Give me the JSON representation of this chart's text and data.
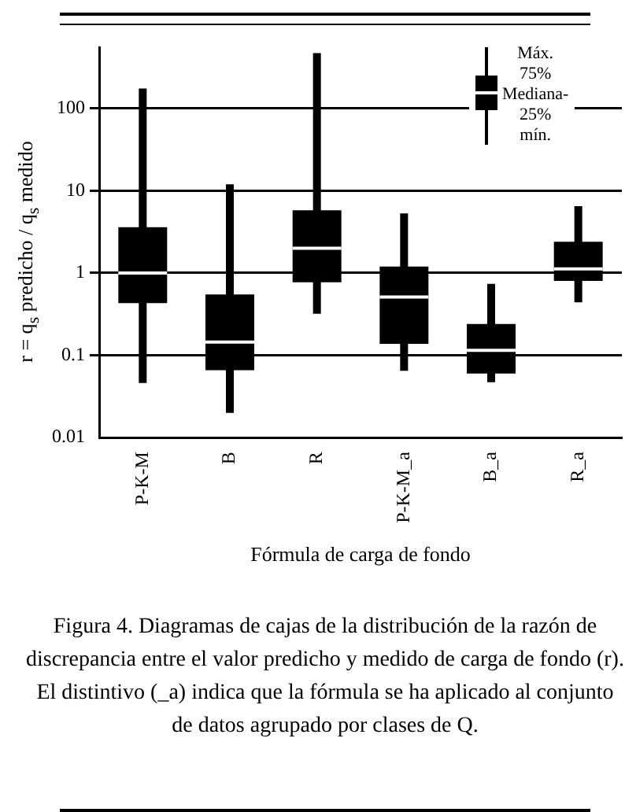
{
  "chart_data": {
    "type": "box",
    "ylabel": "r = q$_{s}$ predicho / q$_{s}$ medido",
    "xlabel": "Fórmula de carga de fondo",
    "categories": [
      "P-K-M",
      "B",
      "R",
      "P-K-M_a",
      "B_a",
      "R_a"
    ],
    "color": "#000000",
    "log": "y",
    "ylim": [
      0.01,
      550
    ],
    "yticks": [
      {
        "value": 0.01,
        "label": "0.01"
      },
      {
        "value": 0.1,
        "label": "0.1"
      },
      1,
      10,
      100
    ],
    "grid": "y",
    "boxes": [
      {
        "low": 0.046,
        "q1": 0.43,
        "median": 1.0,
        "q3": 3.6,
        "high": 175
      },
      {
        "low": 0.02,
        "q1": 0.066,
        "median": 0.145,
        "q3": 0.55,
        "high": 12
      },
      {
        "low": 0.32,
        "q1": 0.77,
        "median": 2.0,
        "q3": 5.8,
        "high": 470
      },
      {
        "low": 0.065,
        "q1": 0.138,
        "median": 0.51,
        "q3": 1.2,
        "high": 5.3
      },
      {
        "low": 0.047,
        "q1": 0.06,
        "median": 0.115,
        "q3": 0.24,
        "high": 0.74
      },
      {
        "low": 0.44,
        "q1": 0.8,
        "median": 1.12,
        "q3": 2.4,
        "high": 6.5
      }
    ],
    "annotations": [
      "Máx.",
      "75%",
      "Mediana-",
      "25%",
      "mín.",
      "Figura 4. Diagramas de cajas de la distribución de la razón de discrepancia entre el valor predicho y medido de carga de fondo (r). El distintivo (_a) indica que la fórmula se ha aplicado al conjunto de datos agrupado por clases de Q."
    ]
  }
}
